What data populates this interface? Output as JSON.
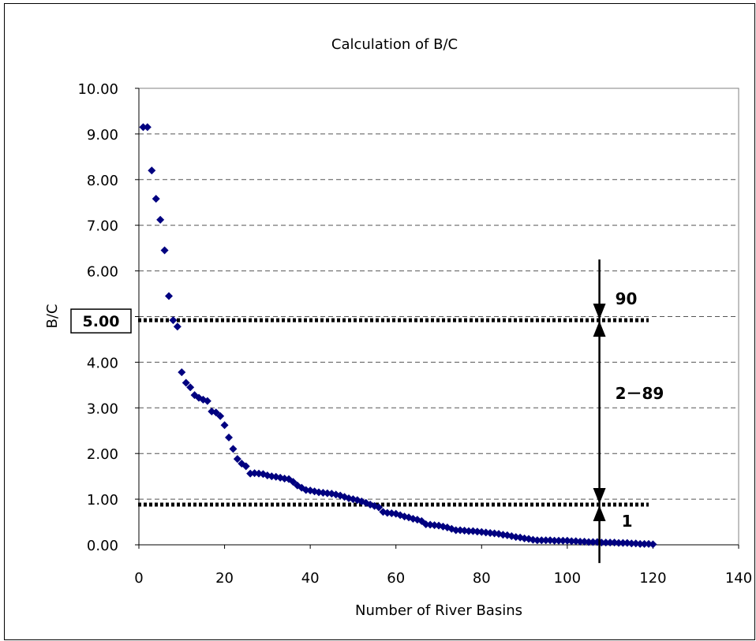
{
  "chart_data": {
    "type": "scatter",
    "title": "Calculation of B/C",
    "xlabel": "Number of River Basins",
    "ylabel": "B/C",
    "xlim": [
      0,
      140
    ],
    "ylim": [
      0,
      10
    ],
    "x_ticks": [
      "0",
      "20",
      "40",
      "60",
      "80",
      "100",
      "120",
      "140"
    ],
    "y_ticks": [
      "0.00",
      "1.00",
      "2.00",
      "3.00",
      "4.00",
      "5.00",
      "6.00",
      "7.00",
      "8.00",
      "9.00",
      "10.00"
    ],
    "grid": "horizontal dashed",
    "marker": "diamond",
    "marker_color": "#000080",
    "series": [
      {
        "x": [
          1,
          2,
          3,
          4,
          5,
          6,
          7,
          8,
          9,
          10,
          11,
          12,
          13,
          14,
          15,
          16,
          17,
          18,
          19,
          20,
          21,
          22,
          23,
          24,
          25,
          26,
          27,
          28,
          29,
          30,
          31,
          32,
          33,
          34,
          35,
          36,
          37,
          38,
          39,
          40,
          41,
          42,
          43,
          44,
          45,
          46,
          47,
          48,
          49,
          50,
          51,
          52,
          53,
          54,
          55,
          56,
          57,
          58,
          59,
          60,
          61,
          62,
          63,
          64,
          65,
          66,
          67,
          68,
          69,
          70,
          71,
          72,
          73,
          74,
          75,
          76,
          77,
          78,
          79,
          80,
          81,
          82,
          83,
          84,
          85,
          86,
          87,
          88,
          89,
          90,
          91,
          92,
          93,
          94,
          95,
          96,
          97,
          98,
          99,
          100,
          101,
          102,
          103,
          104,
          105,
          106,
          107,
          108,
          109,
          110,
          111,
          112,
          113,
          114,
          115,
          116,
          117,
          118,
          119,
          120
        ],
        "y": [
          9.15,
          9.15,
          8.2,
          7.58,
          7.12,
          6.45,
          5.45,
          4.92,
          4.78,
          3.78,
          3.55,
          3.45,
          3.28,
          3.22,
          3.18,
          3.15,
          2.92,
          2.9,
          2.82,
          2.62,
          2.35,
          2.1,
          1.88,
          1.78,
          1.72,
          1.56,
          1.57,
          1.56,
          1.55,
          1.52,
          1.5,
          1.49,
          1.47,
          1.45,
          1.44,
          1.38,
          1.3,
          1.25,
          1.2,
          1.19,
          1.17,
          1.15,
          1.14,
          1.13,
          1.12,
          1.1,
          1.08,
          1.05,
          1.02,
          1.0,
          0.98,
          0.95,
          0.92,
          0.88,
          0.85,
          0.82,
          0.72,
          0.7,
          0.69,
          0.68,
          0.65,
          0.62,
          0.6,
          0.57,
          0.55,
          0.52,
          0.45,
          0.44,
          0.43,
          0.42,
          0.4,
          0.38,
          0.35,
          0.32,
          0.32,
          0.31,
          0.3,
          0.3,
          0.29,
          0.28,
          0.27,
          0.26,
          0.25,
          0.24,
          0.22,
          0.21,
          0.19,
          0.17,
          0.16,
          0.14,
          0.13,
          0.11,
          0.1,
          0.1,
          0.1,
          0.1,
          0.09,
          0.09,
          0.09,
          0.09,
          0.08,
          0.08,
          0.07,
          0.07,
          0.06,
          0.06,
          0.06,
          0.05,
          0.05,
          0.05,
          0.05,
          0.04,
          0.04,
          0.04,
          0.03,
          0.03,
          0.02,
          0.02,
          0.02,
          0.01
        ]
      }
    ],
    "threshold_lines": [
      {
        "y": 4.92,
        "label": "5.00",
        "boxed": true
      },
      {
        "y": 0.88,
        "label": "",
        "boxed": false
      }
    ],
    "annotations": [
      {
        "label": "90",
        "x": 107.5,
        "from": 6.25,
        "to": 4.92
      },
      {
        "label": "2－89",
        "x": 107.5,
        "from": 0.88,
        "to": 4.92
      },
      {
        "label": "1",
        "x": 107.5,
        "from": -0.4,
        "to": 0.88
      }
    ]
  }
}
